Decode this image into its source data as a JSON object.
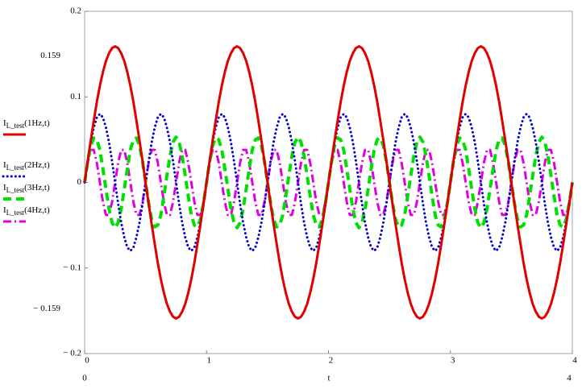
{
  "chart_data": {
    "type": "line",
    "x_label": "t",
    "x": [
      0,
      0.025,
      0.05,
      0.075,
      0.1,
      0.125,
      0.15,
      0.175,
      0.2,
      0.225,
      0.25,
      0.275,
      0.3,
      0.325,
      0.35,
      0.375,
      0.4,
      0.425,
      0.45,
      0.475,
      0.5,
      0.525,
      0.55,
      0.575,
      0.6,
      0.625,
      0.65,
      0.675,
      0.7,
      0.725,
      0.75,
      0.775,
      0.8,
      0.825,
      0.85,
      0.875,
      0.9,
      0.925,
      0.95,
      0.975,
      1,
      1.025,
      1.05,
      1.075,
      1.1,
      1.125,
      1.15,
      1.175,
      1.2,
      1.225,
      1.25,
      1.275,
      1.3,
      1.325,
      1.35,
      1.375,
      1.4,
      1.425,
      1.45,
      1.475,
      1.5,
      1.525,
      1.55,
      1.575,
      1.6,
      1.625,
      1.65,
      1.675,
      1.7,
      1.725,
      1.75,
      1.775,
      1.8,
      1.825,
      1.85,
      1.875,
      1.9,
      1.925,
      1.95,
      1.975,
      2,
      2.025,
      2.05,
      2.075,
      2.1,
      2.125,
      2.15,
      2.175,
      2.2,
      2.225,
      2.25,
      2.275,
      2.3,
      2.325,
      2.35,
      2.375,
      2.4,
      2.425,
      2.45,
      2.475,
      2.5,
      2.525,
      2.55,
      2.575,
      2.6,
      2.625,
      2.65,
      2.675,
      2.7,
      2.725,
      2.75,
      2.775,
      2.8,
      2.825,
      2.85,
      2.875,
      2.9,
      2.925,
      2.95,
      2.975,
      3,
      3.025,
      3.05,
      3.075,
      3.1,
      3.125,
      3.15,
      3.175,
      3.2,
      3.225,
      3.25,
      3.275,
      3.3,
      3.325,
      3.35,
      3.375,
      3.4,
      3.425,
      3.45,
      3.475,
      3.5,
      3.525,
      3.55,
      3.575,
      3.6,
      3.625,
      3.65,
      3.675,
      3.7,
      3.725,
      3.75,
      3.775,
      3.8,
      3.825,
      3.85,
      3.875,
      3.9,
      3.925,
      3.95,
      3.975,
      4
    ],
    "series": [
      {
        "name": "IL_test(1Hz,t)",
        "color": "#e00000",
        "line_style": "solid",
        "values": [
          0,
          0.025,
          0.049,
          0.072,
          0.094,
          0.113,
          0.129,
          0.142,
          0.151,
          0.157,
          0.159,
          0.157,
          0.151,
          0.142,
          0.129,
          0.113,
          0.094,
          0.072,
          0.049,
          0.025,
          0,
          -0.025,
          -0.049,
          -0.072,
          -0.094,
          -0.113,
          -0.129,
          -0.142,
          -0.151,
          -0.157,
          -0.159,
          -0.157,
          -0.151,
          -0.142,
          -0.129,
          -0.113,
          -0.094,
          -0.072,
          -0.049,
          -0.025,
          0,
          0.025,
          0.049,
          0.072,
          0.094,
          0.113,
          0.129,
          0.142,
          0.151,
          0.157,
          0.159,
          0.157,
          0.151,
          0.142,
          0.129,
          0.113,
          0.094,
          0.072,
          0.049,
          0.025,
          0,
          -0.025,
          -0.049,
          -0.072,
          -0.094,
          -0.113,
          -0.129,
          -0.142,
          -0.151,
          -0.157,
          -0.159,
          -0.157,
          -0.151,
          -0.142,
          -0.129,
          -0.113,
          -0.094,
          -0.072,
          -0.049,
          -0.025,
          0,
          0.025,
          0.049,
          0.072,
          0.094,
          0.113,
          0.129,
          0.142,
          0.151,
          0.157,
          0.159,
          0.157,
          0.151,
          0.142,
          0.129,
          0.113,
          0.094,
          0.072,
          0.049,
          0.025,
          0,
          -0.025,
          -0.049,
          -0.072,
          -0.094,
          -0.113,
          -0.129,
          -0.142,
          -0.151,
          -0.157,
          -0.159,
          -0.157,
          -0.151,
          -0.142,
          -0.129,
          -0.113,
          -0.094,
          -0.072,
          -0.049,
          -0.025,
          0,
          0.025,
          0.049,
          0.072,
          0.094,
          0.113,
          0.129,
          0.142,
          0.151,
          0.157,
          0.159,
          0.157,
          0.151,
          0.142,
          0.129,
          0.113,
          0.094,
          0.072,
          0.049,
          0.025,
          0,
          -0.025,
          -0.049,
          -0.072,
          -0.094,
          -0.113,
          -0.129,
          -0.142,
          -0.151,
          -0.157,
          -0.159,
          -0.157,
          -0.151,
          -0.142,
          -0.129,
          -0.113,
          -0.094,
          -0.072,
          -0.049,
          -0.025,
          0
        ]
      },
      {
        "name": "IL_test(2Hz,t)",
        "color": "#0000cc",
        "line_style": "dotted",
        "values": [
          0,
          0.025,
          0.047,
          0.064,
          0.076,
          0.08,
          0.076,
          0.064,
          0.047,
          0.025,
          0,
          -0.025,
          -0.047,
          -0.064,
          -0.076,
          -0.08,
          -0.076,
          -0.064,
          -0.047,
          -0.025,
          0,
          0.025,
          0.047,
          0.064,
          0.076,
          0.08,
          0.076,
          0.064,
          0.047,
          0.025,
          0,
          -0.025,
          -0.047,
          -0.064,
          -0.076,
          -0.08,
          -0.076,
          -0.064,
          -0.047,
          -0.025,
          0,
          0.025,
          0.047,
          0.064,
          0.076,
          0.08,
          0.076,
          0.064,
          0.047,
          0.025,
          0,
          -0.025,
          -0.047,
          -0.064,
          -0.076,
          -0.08,
          -0.076,
          -0.064,
          -0.047,
          -0.025,
          0,
          0.025,
          0.047,
          0.064,
          0.076,
          0.08,
          0.076,
          0.064,
          0.047,
          0.025,
          0,
          -0.025,
          -0.047,
          -0.064,
          -0.076,
          -0.08,
          -0.076,
          -0.064,
          -0.047,
          -0.025,
          0,
          0.025,
          0.047,
          0.064,
          0.076,
          0.08,
          0.076,
          0.064,
          0.047,
          0.025,
          0,
          -0.025,
          -0.047,
          -0.064,
          -0.076,
          -0.08,
          -0.076,
          -0.064,
          -0.047,
          -0.025,
          0,
          0.025,
          0.047,
          0.064,
          0.076,
          0.08,
          0.076,
          0.064,
          0.047,
          0.025,
          0,
          -0.025,
          -0.047,
          -0.064,
          -0.076,
          -0.08,
          -0.076,
          -0.064,
          -0.047,
          -0.025,
          0,
          0.025,
          0.047,
          0.064,
          0.076,
          0.08,
          0.076,
          0.064,
          0.047,
          0.025,
          0,
          -0.025,
          -0.047,
          -0.064,
          -0.076,
          -0.08,
          -0.076,
          -0.064,
          -0.047,
          -0.025,
          0,
          0.025,
          0.047,
          0.064,
          0.076,
          0.08,
          0.076,
          0.064,
          0.047,
          0.025,
          0,
          -0.025,
          -0.047,
          -0.064,
          -0.076,
          -0.08,
          -0.076,
          -0.064,
          -0.047,
          -0.025,
          0
        ]
      },
      {
        "name": "IL_test(3Hz,t)",
        "color": "#00e000",
        "line_style": "dashed",
        "values": [
          0,
          0.024,
          0.043,
          0.052,
          0.05,
          0.038,
          0.016,
          -0.008,
          -0.031,
          -0.047,
          -0.053,
          -0.047,
          -0.031,
          -0.008,
          0.016,
          0.038,
          0.05,
          0.052,
          0.043,
          0.024,
          0,
          -0.024,
          -0.043,
          -0.052,
          -0.05,
          -0.038,
          -0.016,
          0.008,
          0.031,
          0.047,
          0.053,
          0.047,
          0.031,
          0.008,
          -0.016,
          -0.038,
          -0.05,
          -0.052,
          -0.043,
          -0.024,
          0,
          0.024,
          0.043,
          0.052,
          0.05,
          0.038,
          0.016,
          -0.008,
          -0.031,
          -0.047,
          -0.053,
          -0.047,
          -0.031,
          -0.008,
          0.016,
          0.038,
          0.05,
          0.052,
          0.043,
          0.024,
          0,
          -0.024,
          -0.043,
          -0.052,
          -0.05,
          -0.038,
          -0.016,
          0.008,
          0.031,
          0.047,
          0.053,
          0.047,
          0.031,
          0.008,
          -0.016,
          -0.038,
          -0.05,
          -0.052,
          -0.043,
          -0.024,
          0,
          0.024,
          0.043,
          0.052,
          0.05,
          0.038,
          0.016,
          -0.008,
          -0.031,
          -0.047,
          -0.053,
          -0.047,
          -0.031,
          -0.008,
          0.016,
          0.038,
          0.05,
          0.052,
          0.043,
          0.024,
          0,
          -0.024,
          -0.043,
          -0.052,
          -0.05,
          -0.038,
          -0.016,
          0.008,
          0.031,
          0.047,
          0.053,
          0.047,
          0.031,
          0.008,
          -0.016,
          -0.038,
          -0.05,
          -0.052,
          -0.043,
          -0.024,
          0,
          0.024,
          0.043,
          0.052,
          0.05,
          0.038,
          0.016,
          -0.008,
          -0.031,
          -0.047,
          -0.053,
          -0.047,
          -0.031,
          -0.008,
          0.016,
          0.038,
          0.05,
          0.052,
          0.043,
          0.024,
          0,
          -0.024,
          -0.043,
          -0.052,
          -0.05,
          -0.038,
          -0.016,
          0.008,
          0.031,
          0.047,
          0.053,
          0.047,
          0.031,
          0.008,
          -0.016,
          -0.038,
          -0.05,
          -0.052,
          -0.043,
          -0.024,
          0
        ]
      },
      {
        "name": "IL_test(4Hz,t)",
        "color": "#e000e0",
        "line_style": "dashdot",
        "values": [
          0,
          0.023,
          0.038,
          0.038,
          0.023,
          0,
          -0.023,
          -0.038,
          -0.038,
          -0.023,
          0,
          0.023,
          0.038,
          0.038,
          0.023,
          0,
          -0.023,
          -0.038,
          -0.038,
          -0.023,
          0,
          0.023,
          0.038,
          0.038,
          0.023,
          0,
          -0.023,
          -0.038,
          -0.038,
          -0.023,
          0,
          0.023,
          0.038,
          0.038,
          0.023,
          0,
          -0.023,
          -0.038,
          -0.038,
          -0.023,
          0,
          0.023,
          0.038,
          0.038,
          0.023,
          0,
          -0.023,
          -0.038,
          -0.038,
          -0.023,
          0,
          0.023,
          0.038,
          0.038,
          0.023,
          0,
          -0.023,
          -0.038,
          -0.038,
          -0.023,
          0,
          0.023,
          0.038,
          0.038,
          0.023,
          0,
          -0.023,
          -0.038,
          -0.038,
          -0.023,
          0,
          0.023,
          0.038,
          0.038,
          0.023,
          0,
          -0.023,
          -0.038,
          -0.038,
          -0.023,
          0,
          0.023,
          0.038,
          0.038,
          0.023,
          0,
          -0.023,
          -0.038,
          -0.038,
          -0.023,
          0,
          0.023,
          0.038,
          0.038,
          0.023,
          0,
          -0.023,
          -0.038,
          -0.038,
          -0.023,
          0,
          0.023,
          0.038,
          0.038,
          0.023,
          0,
          -0.023,
          -0.038,
          -0.038,
          -0.023,
          0,
          0.023,
          0.038,
          0.038,
          0.023,
          0,
          -0.023,
          -0.038,
          -0.038,
          -0.023,
          0,
          0.023,
          0.038,
          0.038,
          0.023,
          0,
          -0.023,
          -0.038,
          -0.038,
          -0.023,
          0,
          0.023,
          0.038,
          0.038,
          0.023,
          0,
          -0.023,
          -0.038,
          -0.038,
          -0.023,
          0,
          0.023,
          0.038,
          0.038,
          0.023,
          0,
          -0.023,
          -0.038,
          -0.038,
          -0.023,
          0,
          0.023,
          0.038,
          0.038,
          0.023,
          0,
          -0.023,
          -0.038,
          -0.038,
          -0.023,
          0
        ]
      }
    ],
    "xlim": [
      0,
      4
    ],
    "xticks": [
      0,
      1,
      2,
      3,
      4
    ],
    "ylim": [
      -0.2,
      0.2
    ],
    "yticks": [
      {
        "value": -0.2,
        "label": "− 0.2"
      },
      {
        "value": -0.1,
        "label": "− 0.1"
      },
      0,
      0.1,
      0.2
    ],
    "y_markers": [
      0.159,
      {
        "value": -0.159,
        "label": "− 0.159"
      }
    ]
  }
}
